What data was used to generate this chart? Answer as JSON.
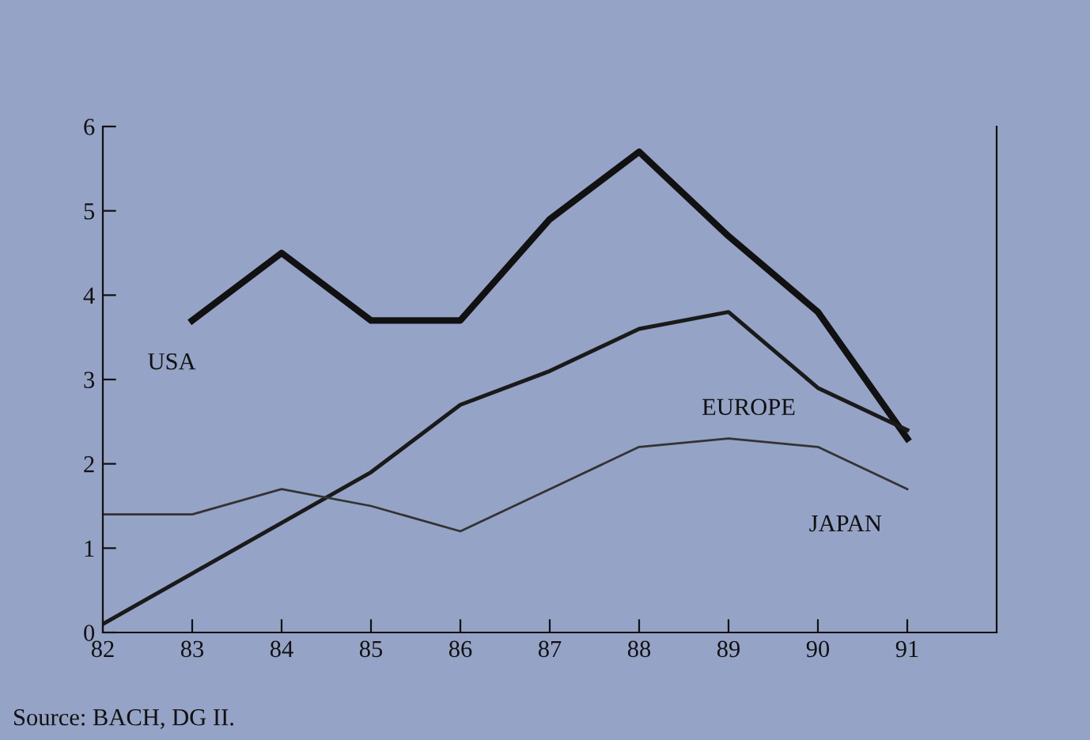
{
  "chart_data": {
    "type": "line",
    "x": [
      82,
      83,
      84,
      85,
      86,
      87,
      88,
      89,
      90,
      91
    ],
    "series": [
      {
        "name": "USA",
        "color": "#111111",
        "values": [
          null,
          3.7,
          4.5,
          3.7,
          3.7,
          4.9,
          5.7,
          4.7,
          3.8,
          2.3
        ]
      },
      {
        "name": "EUROPE",
        "color": "#1a1a1a",
        "values": [
          0.1,
          0.7,
          1.3,
          1.9,
          2.7,
          3.1,
          3.6,
          3.8,
          2.9,
          2.4
        ]
      },
      {
        "name": "JAPAN",
        "color": "#333333",
        "values": [
          1.4,
          1.4,
          1.7,
          1.5,
          1.2,
          1.7,
          2.2,
          2.3,
          2.2,
          1.7
        ]
      }
    ],
    "xlim": [
      82,
      92
    ],
    "xticks": [
      82,
      83,
      84,
      85,
      86,
      87,
      88,
      89,
      90,
      91
    ],
    "ylim": [
      0,
      6
    ],
    "yticks": [
      0,
      1,
      2,
      3,
      4,
      5,
      6
    ],
    "grid": false,
    "legend": false,
    "marker": "none",
    "line_style": "solid",
    "annotations": [
      "Source: BACH, DG II."
    ]
  }
}
